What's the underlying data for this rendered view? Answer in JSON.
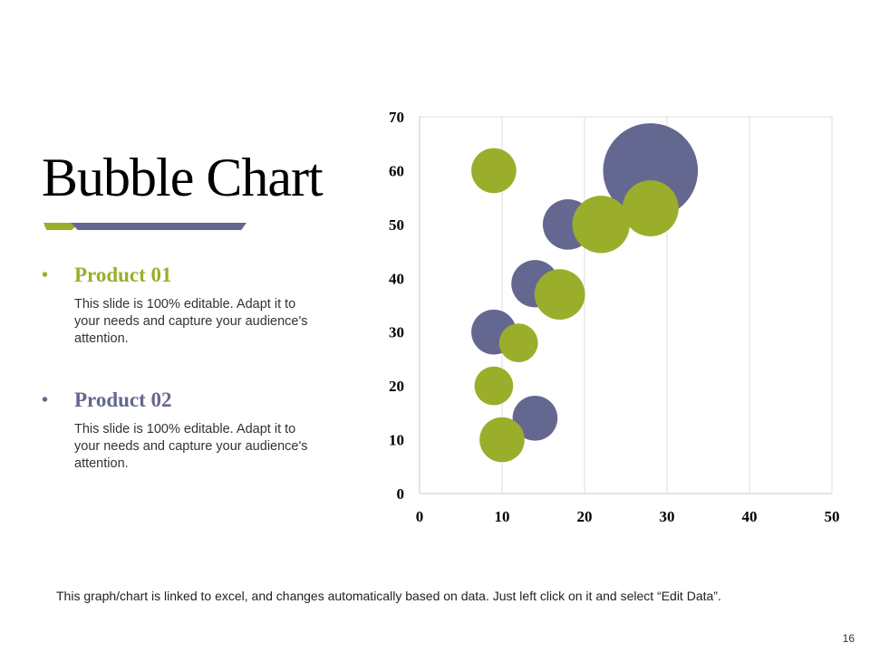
{
  "slide": {
    "title": "Bubble Chart",
    "accent_colors": {
      "green": "#9aae2c",
      "navy": "#646890"
    },
    "products": [
      {
        "bullet": "•",
        "name": "Product 01",
        "color": "#9aae2c",
        "description": "This slide is 100% editable. Adapt it to your needs and capture your audience's attention."
      },
      {
        "bullet": "•",
        "name": "Product 02",
        "color": "#646890",
        "description": "This slide is 100% editable. Adapt it to your needs and capture your audience's attention."
      }
    ],
    "footnote": "This graph/chart is linked to excel, and changes automatically based on data. Just left click on it and select “Edit Data”.",
    "page_number": "16"
  },
  "chart_data": {
    "type": "scatter",
    "subtype": "bubble",
    "title": "",
    "xlabel": "",
    "ylabel": "",
    "xlim": [
      0,
      50
    ],
    "ylim": [
      0,
      70
    ],
    "xticks": [
      0,
      10,
      20,
      30,
      40,
      50
    ],
    "yticks": [
      0,
      10,
      20,
      30,
      40,
      50,
      60,
      70
    ],
    "grid": "vertical",
    "legend": "none",
    "series": [
      {
        "name": "Product 02",
        "color": "#646890",
        "points": [
          {
            "x": 28,
            "y": 60,
            "size": 12
          },
          {
            "x": 18,
            "y": 50,
            "size": 3.4
          },
          {
            "x": 14,
            "y": 39,
            "size": 3.0
          },
          {
            "x": 9,
            "y": 30,
            "size": 2.7
          },
          {
            "x": 14,
            "y": 14,
            "size": 2.7
          }
        ]
      },
      {
        "name": "Product 01",
        "color": "#9aae2c",
        "points": [
          {
            "x": 9,
            "y": 60,
            "size": 2.7
          },
          {
            "x": 22,
            "y": 50,
            "size": 4.4
          },
          {
            "x": 28,
            "y": 53,
            "size": 4.2
          },
          {
            "x": 17,
            "y": 37,
            "size": 3.4
          },
          {
            "x": 12,
            "y": 28,
            "size": 2.0
          },
          {
            "x": 9,
            "y": 20,
            "size": 2.0
          },
          {
            "x": 10,
            "y": 10,
            "size": 2.7
          }
        ]
      }
    ]
  }
}
